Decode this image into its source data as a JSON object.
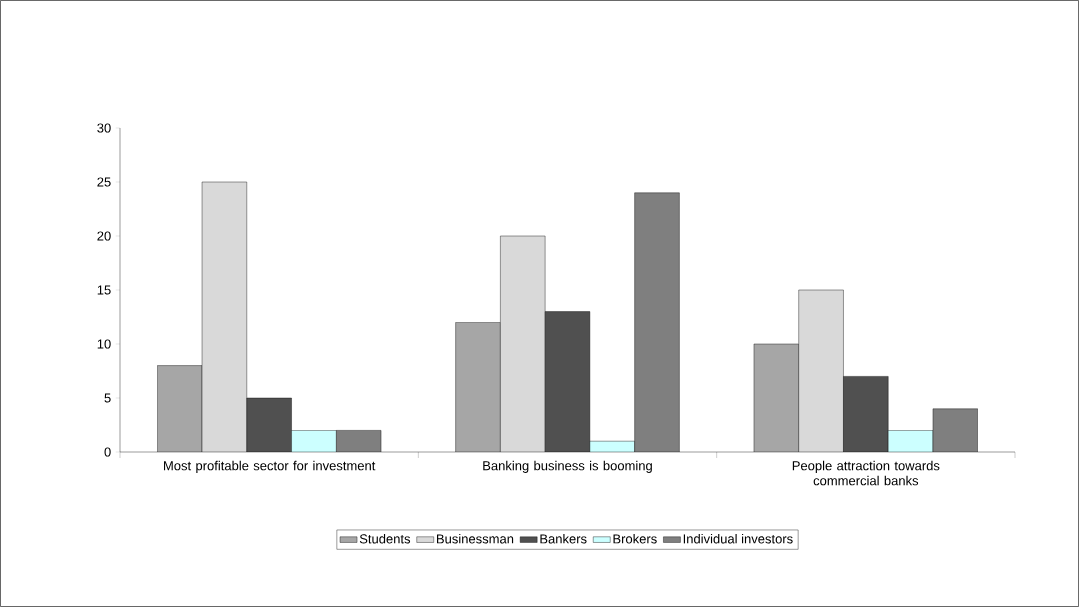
{
  "chart_data": {
    "type": "bar",
    "categories": [
      "Most profitable sector for investment",
      "Banking business is booming",
      "People attraction towards commercial banks"
    ],
    "series": [
      {
        "name": "Students",
        "color": "#a6a6a6",
        "values": [
          8,
          12,
          10
        ]
      },
      {
        "name": "Businessman",
        "color": "#d9d9d9",
        "values": [
          25,
          20,
          15
        ]
      },
      {
        "name": "Bankers",
        "color": "#505050",
        "values": [
          5,
          13,
          7
        ]
      },
      {
        "name": "Brokers",
        "color": "#ccffff",
        "values": [
          2,
          1,
          2
        ]
      },
      {
        "name": "Individual investors",
        "color": "#7f7f7f",
        "values": [
          2,
          24,
          4
        ]
      }
    ],
    "ylim": [
      0,
      30
    ],
    "yticks": [
      0,
      5,
      10,
      15,
      20,
      25,
      30
    ],
    "grid": false,
    "legend": "bottom"
  }
}
